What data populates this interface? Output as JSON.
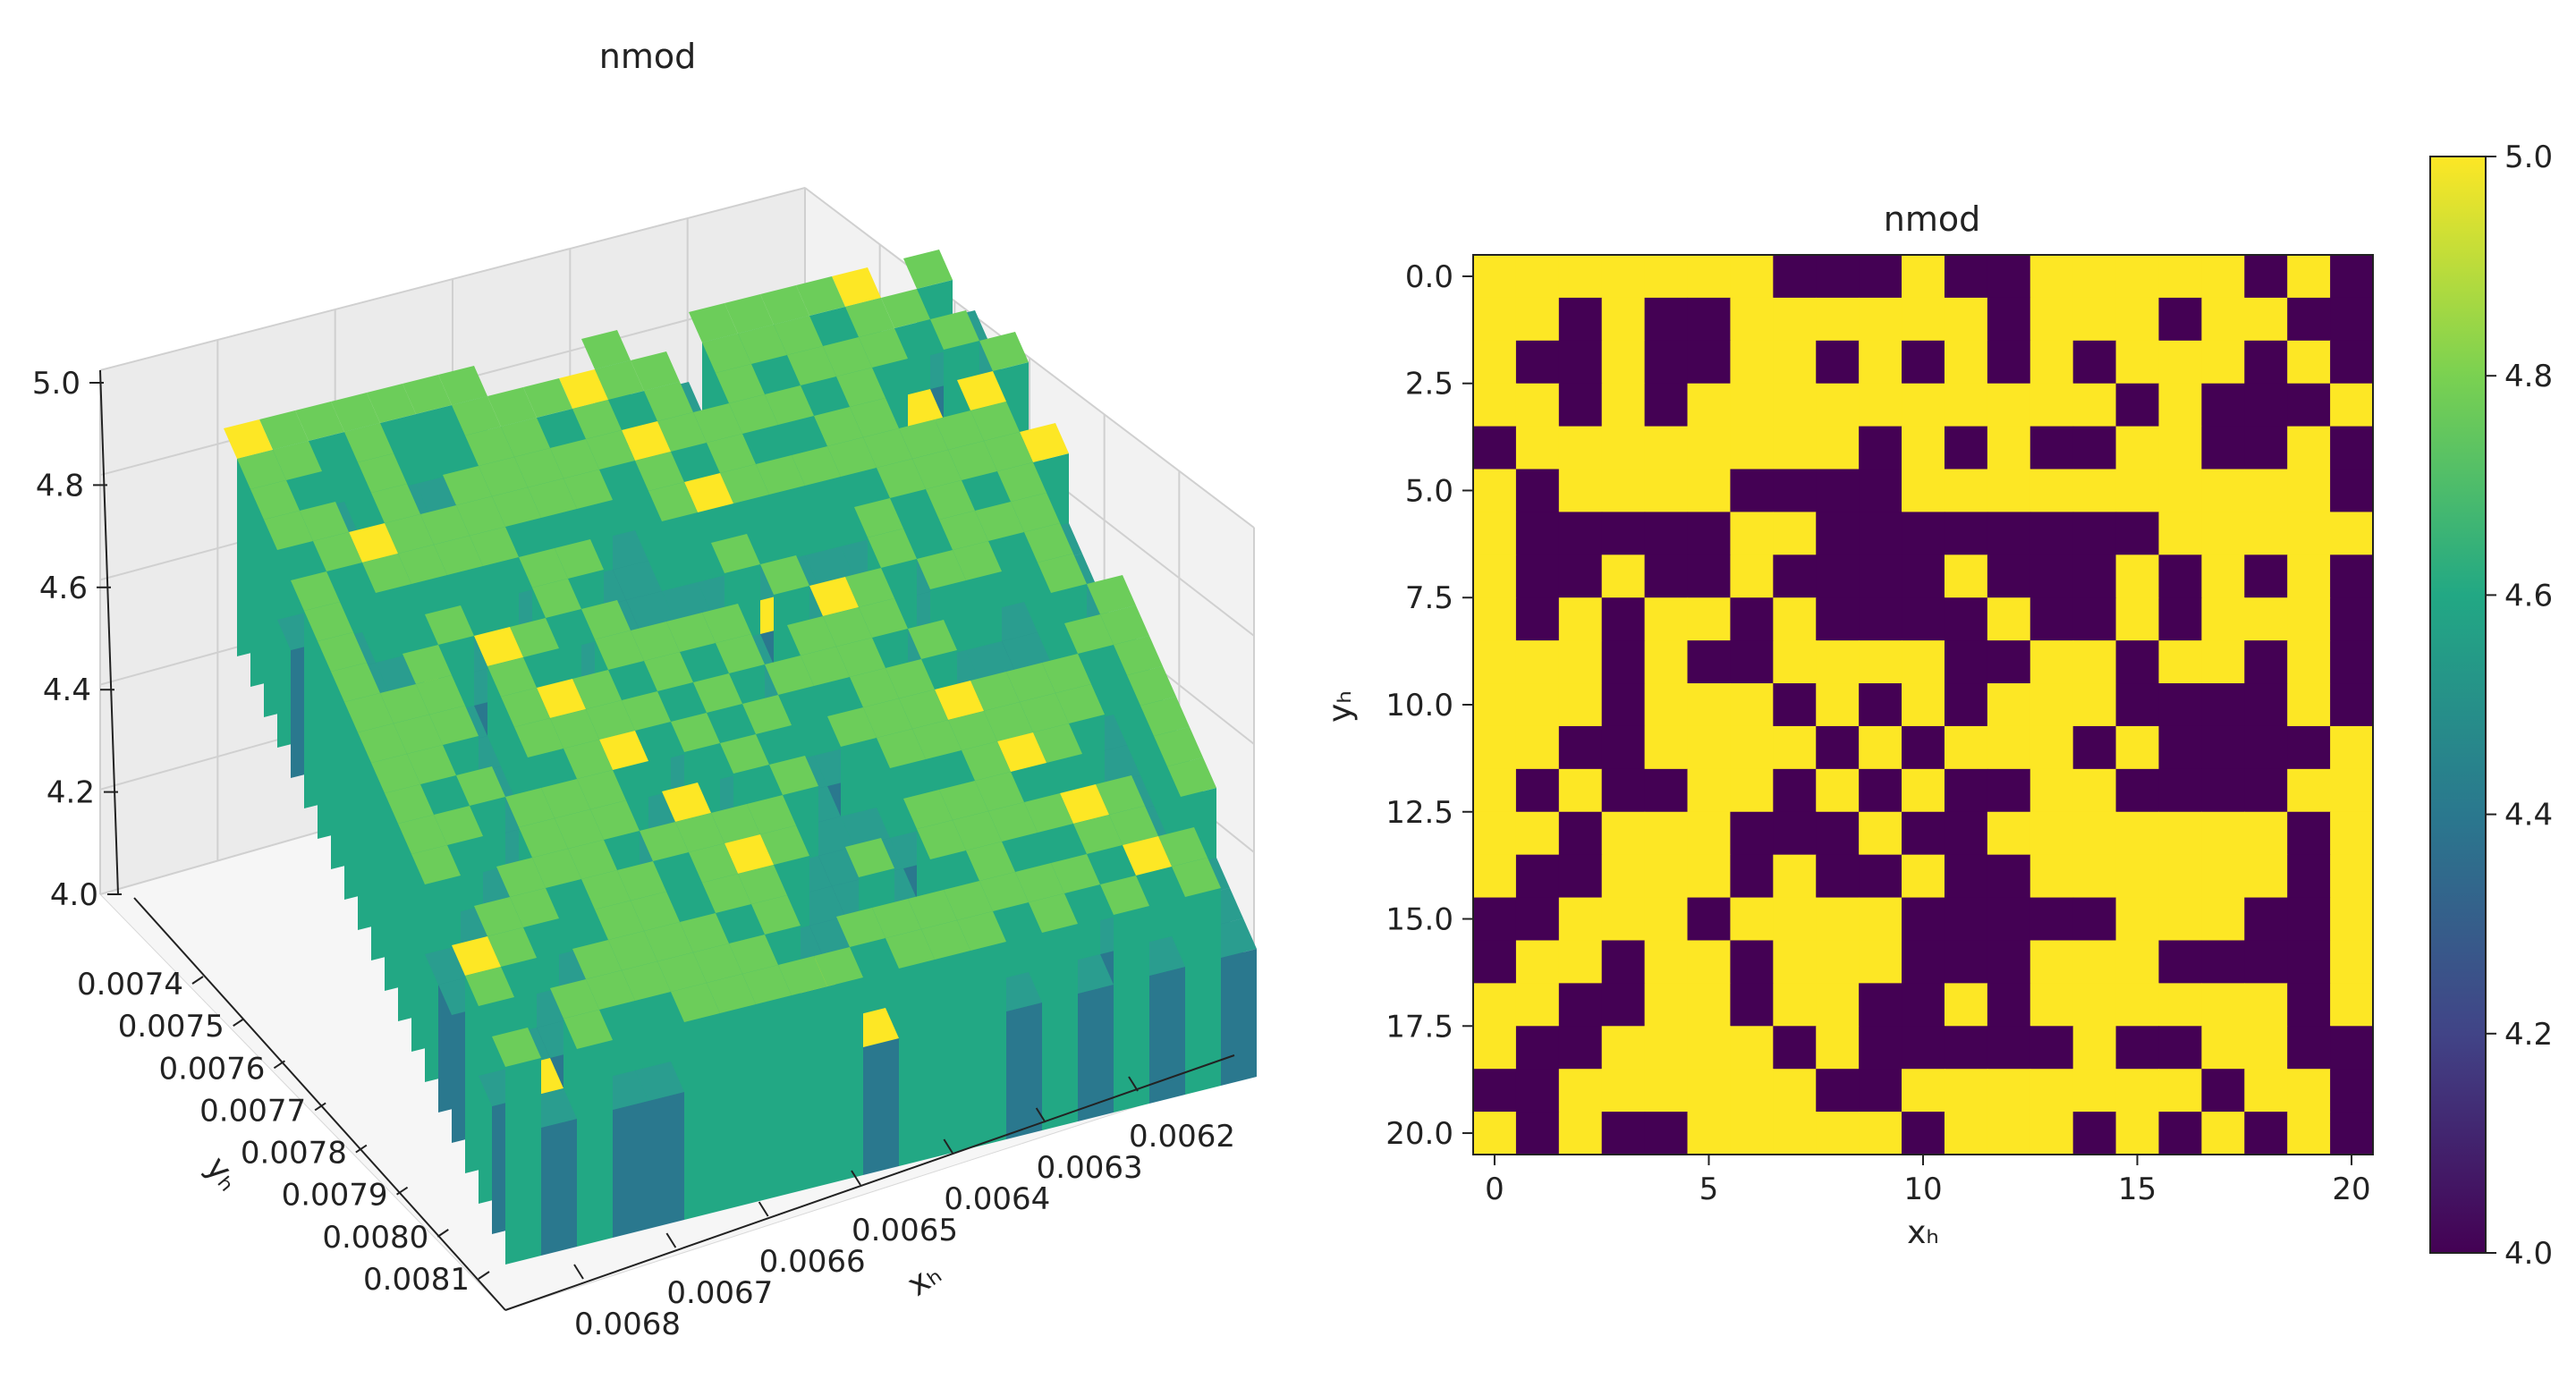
{
  "chart_data": [
    {
      "type": "surface3d",
      "title": "nmod",
      "xlabel": "xₕ",
      "ylabel": "yₕ",
      "zlabel": "",
      "x_ticks": [
        "0.0062",
        "0.0063",
        "0.0064",
        "0.0065",
        "0.0066",
        "0.0067",
        "0.0068"
      ],
      "y_ticks": [
        "0.0074",
        "0.0075",
        "0.0076",
        "0.0077",
        "0.0078",
        "0.0079",
        "0.0080",
        "0.0081"
      ],
      "z_ticks": [
        "4.0",
        "4.2",
        "4.4",
        "4.6",
        "4.8",
        "5.0"
      ],
      "xlim": [
        0.0062,
        0.0068
      ],
      "ylim": [
        0.0074,
        0.0081
      ],
      "zlim": [
        4.0,
        5.0
      ],
      "colormap": "viridis"
    },
    {
      "type": "heatmap",
      "title": "nmod",
      "xlabel": "xₕ",
      "ylabel": "yₕ",
      "x_ticks": [
        "0",
        "5",
        "10",
        "15",
        "20"
      ],
      "y_ticks": [
        "0.0",
        "2.5",
        "5.0",
        "7.5",
        "10.0",
        "12.5",
        "15.0",
        "17.5",
        "20.0"
      ],
      "colorbar_ticks": [
        "4.0",
        "4.2",
        "4.4",
        "4.6",
        "4.8",
        "5.0"
      ],
      "zlim": [
        4.0,
        5.0
      ],
      "colormap": "viridis",
      "colors": {
        "low": "#440154",
        "high": "#fde725"
      },
      "grid": [
        [
          5,
          5,
          5,
          5,
          5,
          5,
          5,
          4,
          4,
          4,
          5,
          4,
          4,
          5,
          5,
          5,
          5,
          5,
          4,
          5,
          4
        ],
        [
          5,
          5,
          4,
          5,
          4,
          4,
          5,
          5,
          5,
          5,
          5,
          5,
          4,
          5,
          5,
          5,
          4,
          5,
          5,
          4,
          4
        ],
        [
          5,
          4,
          4,
          5,
          4,
          4,
          5,
          5,
          4,
          5,
          4,
          5,
          4,
          5,
          4,
          5,
          5,
          5,
          4,
          5,
          4
        ],
        [
          5,
          5,
          4,
          5,
          4,
          5,
          5,
          5,
          5,
          5,
          5,
          5,
          5,
          5,
          5,
          4,
          5,
          4,
          4,
          4,
          5
        ],
        [
          4,
          5,
          5,
          5,
          5,
          5,
          5,
          5,
          5,
          4,
          5,
          4,
          5,
          4,
          4,
          5,
          5,
          4,
          4,
          5,
          4
        ],
        [
          5,
          4,
          5,
          5,
          5,
          5,
          4,
          4,
          4,
          4,
          5,
          5,
          5,
          5,
          5,
          5,
          5,
          5,
          5,
          5,
          4
        ],
        [
          5,
          4,
          4,
          4,
          4,
          4,
          5,
          5,
          4,
          4,
          4,
          4,
          4,
          4,
          4,
          4,
          5,
          5,
          5,
          5,
          5
        ],
        [
          5,
          4,
          4,
          5,
          4,
          4,
          5,
          4,
          4,
          4,
          4,
          5,
          4,
          4,
          4,
          5,
          4,
          5,
          4,
          5,
          4
        ],
        [
          5,
          4,
          5,
          4,
          5,
          5,
          4,
          5,
          4,
          4,
          4,
          4,
          5,
          4,
          4,
          5,
          4,
          5,
          5,
          5,
          4
        ],
        [
          5,
          5,
          5,
          4,
          5,
          4,
          4,
          5,
          5,
          5,
          5,
          4,
          4,
          5,
          5,
          4,
          5,
          5,
          4,
          5,
          4
        ],
        [
          5,
          5,
          5,
          4,
          5,
          5,
          5,
          4,
          5,
          4,
          5,
          4,
          5,
          5,
          5,
          4,
          4,
          4,
          4,
          5,
          4
        ],
        [
          5,
          5,
          4,
          4,
          5,
          5,
          5,
          5,
          4,
          5,
          4,
          5,
          5,
          5,
          4,
          5,
          4,
          4,
          4,
          4,
          5
        ],
        [
          5,
          4,
          5,
          4,
          4,
          5,
          5,
          4,
          5,
          4,
          5,
          4,
          4,
          5,
          5,
          4,
          4,
          4,
          4,
          5,
          5
        ],
        [
          5,
          5,
          4,
          5,
          5,
          5,
          4,
          4,
          4,
          5,
          4,
          4,
          5,
          5,
          5,
          5,
          5,
          5,
          5,
          4,
          5
        ],
        [
          5,
          4,
          4,
          5,
          5,
          5,
          4,
          5,
          4,
          4,
          5,
          4,
          4,
          5,
          5,
          5,
          5,
          5,
          5,
          4,
          5
        ],
        [
          4,
          4,
          5,
          5,
          5,
          4,
          5,
          5,
          5,
          5,
          4,
          4,
          4,
          4,
          4,
          5,
          5,
          5,
          4,
          4,
          5
        ],
        [
          4,
          5,
          5,
          4,
          5,
          5,
          4,
          5,
          5,
          5,
          4,
          4,
          4,
          5,
          5,
          5,
          4,
          4,
          4,
          4,
          5
        ],
        [
          5,
          5,
          4,
          4,
          5,
          5,
          4,
          5,
          5,
          4,
          4,
          5,
          4,
          5,
          5,
          5,
          5,
          5,
          5,
          4,
          5
        ],
        [
          5,
          4,
          4,
          5,
          5,
          5,
          5,
          4,
          5,
          4,
          4,
          4,
          4,
          4,
          5,
          4,
          4,
          5,
          5,
          4,
          4
        ],
        [
          4,
          4,
          5,
          5,
          5,
          5,
          5,
          5,
          4,
          4,
          5,
          5,
          5,
          5,
          5,
          5,
          5,
          4,
          5,
          5,
          4
        ],
        [
          5,
          4,
          5,
          4,
          4,
          5,
          5,
          5,
          5,
          5,
          4,
          5,
          5,
          5,
          4,
          5,
          4,
          5,
          4,
          5,
          4
        ]
      ]
    }
  ]
}
